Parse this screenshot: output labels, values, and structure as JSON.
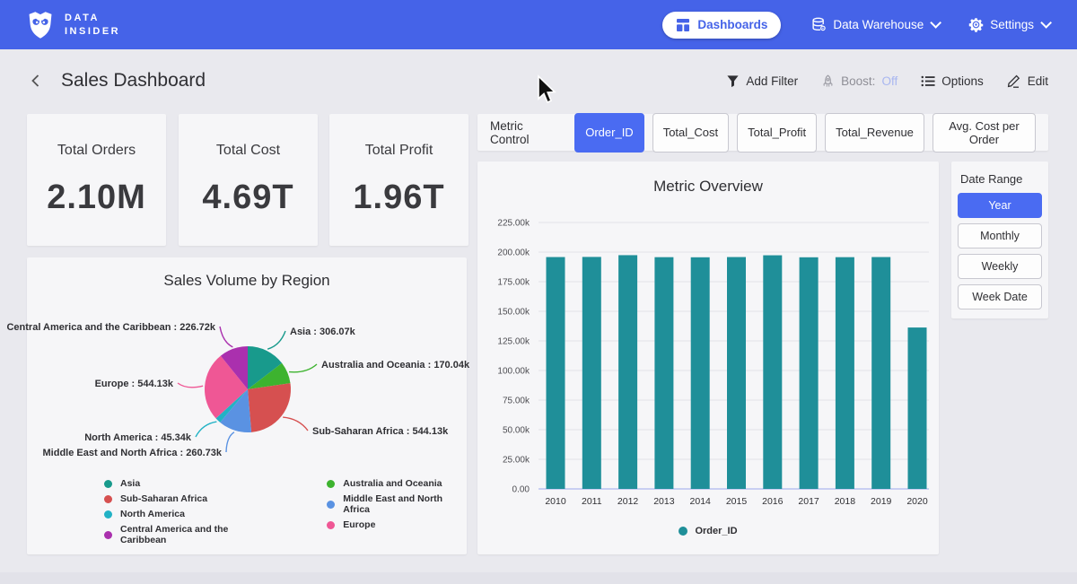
{
  "nav": {
    "brand": {
      "line1": "DATA",
      "line2": "INSIDER"
    },
    "dashboards_label": "Dashboards",
    "data_warehouse_label": "Data Warehouse",
    "settings_label": "Settings"
  },
  "header": {
    "title": "Sales Dashboard",
    "add_filter": "Add Filter",
    "boost_label": "Boost:",
    "boost_value": "Off",
    "options": "Options",
    "edit": "Edit"
  },
  "kpis": [
    {
      "label": "Total Orders",
      "value": "2.10M"
    },
    {
      "label": "Total Cost",
      "value": "4.69T"
    },
    {
      "label": "Total Profit",
      "value": "1.96T"
    }
  ],
  "metric_control": {
    "label": "Metric Control",
    "buttons": [
      {
        "label": "Order_ID",
        "selected": true
      },
      {
        "label": "Total_Cost",
        "selected": false
      },
      {
        "label": "Total_Profit",
        "selected": false
      },
      {
        "label": "Total_Revenue",
        "selected": false
      },
      {
        "label": "Avg. Cost per Order",
        "selected": false
      }
    ]
  },
  "date_range": {
    "label": "Date Range",
    "buttons": [
      {
        "label": "Year",
        "selected": true
      },
      {
        "label": "Monthly",
        "selected": false
      },
      {
        "label": "Weekly",
        "selected": false
      },
      {
        "label": "Week Date",
        "selected": false
      }
    ]
  },
  "chart_data": [
    {
      "type": "pie",
      "title": "Sales Volume by Region",
      "unit": "k",
      "slices": [
        {
          "label": "Asia",
          "value": 306.07,
          "display": "Asia : 306.07k",
          "color": "#189a8c"
        },
        {
          "label": "Australia and Oceania",
          "value": 170.04,
          "display": "Australia and Oceania : 170.04k",
          "color": "#3db32f"
        },
        {
          "label": "Sub-Saharan Africa",
          "value": 544.13,
          "display": "Sub-Saharan Africa : 544.13k",
          "color": "#d65050"
        },
        {
          "label": "Middle East and North Africa",
          "value": 260.73,
          "display": "Middle East and North Africa : 260.73k",
          "color": "#5a92e2"
        },
        {
          "label": "North America",
          "value": 45.34,
          "display": "North America : 45.34k",
          "color": "#22b2c5"
        },
        {
          "label": "Europe",
          "value": 544.13,
          "display": "Europe : 544.13k",
          "color": "#ef5795"
        },
        {
          "label": "Central America and the Caribbean",
          "value": 226.72,
          "display": "Central America and the Caribbean : 226.72k",
          "color": "#aa30ae"
        }
      ],
      "legend_columns": [
        [
          0,
          2,
          4,
          6
        ],
        [
          1,
          3,
          5
        ]
      ],
      "legend_position": "bottom"
    },
    {
      "type": "bar",
      "title": "Metric Overview",
      "categories": [
        "2010",
        "2011",
        "2012",
        "2013",
        "2014",
        "2015",
        "2016",
        "2017",
        "2018",
        "2019",
        "2020"
      ],
      "series": [
        {
          "name": "Order_ID",
          "values": [
            195800,
            195900,
            197400,
            195700,
            195600,
            195800,
            197300,
            195600,
            195700,
            195800,
            136300
          ]
        }
      ],
      "ylim": [
        0,
        225000
      ],
      "ytick_labels": [
        "0.00",
        "25.00k",
        "50.00k",
        "75.00k",
        "100.00k",
        "125.00k",
        "150.00k",
        "175.00k",
        "200.00k",
        "225.00k"
      ],
      "grid": true,
      "legend_position": "bottom",
      "bar_color": "#1f8f99"
    }
  ],
  "colors": {
    "topbar": "#4563e8",
    "accent": "#4a6bf2",
    "bar": "#1f8f99",
    "boost_off": "#a8b6f0",
    "page_bg": "#e9e9ee",
    "card_bg": "#f6f6f8"
  }
}
